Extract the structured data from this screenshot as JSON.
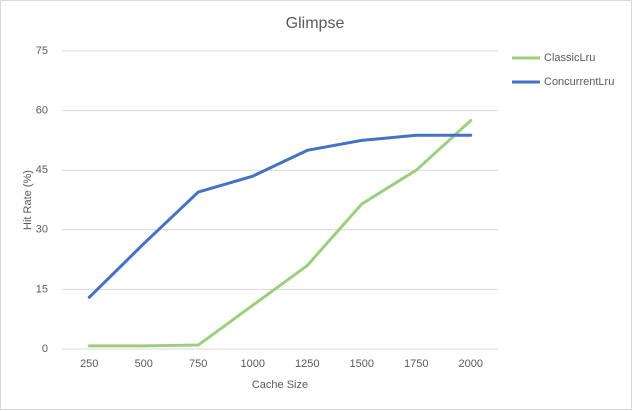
{
  "chart_data": {
    "type": "line",
    "title": "Glimpse",
    "x_label": "Cache Size",
    "y_label": "Hit Rate (%)",
    "categories": [
      "250",
      "500",
      "750",
      "1000",
      "1250",
      "1500",
      "1750",
      "2000"
    ],
    "series": [
      {
        "name": "ClassicLru",
        "color": "#9dce7e",
        "values": [
          0.8,
          0.8,
          1.0,
          11,
          21,
          36.5,
          45,
          57.5
        ]
      },
      {
        "name": "ConcurrentLru",
        "color": "#4472c4",
        "values": [
          13,
          26.5,
          39.5,
          43.5,
          50,
          52.5,
          53.8,
          53.8
        ]
      }
    ],
    "ylim": [
      0,
      75
    ],
    "yticks": [
      0,
      15,
      30,
      45,
      60,
      75
    ],
    "grid": true,
    "legend": "right"
  }
}
